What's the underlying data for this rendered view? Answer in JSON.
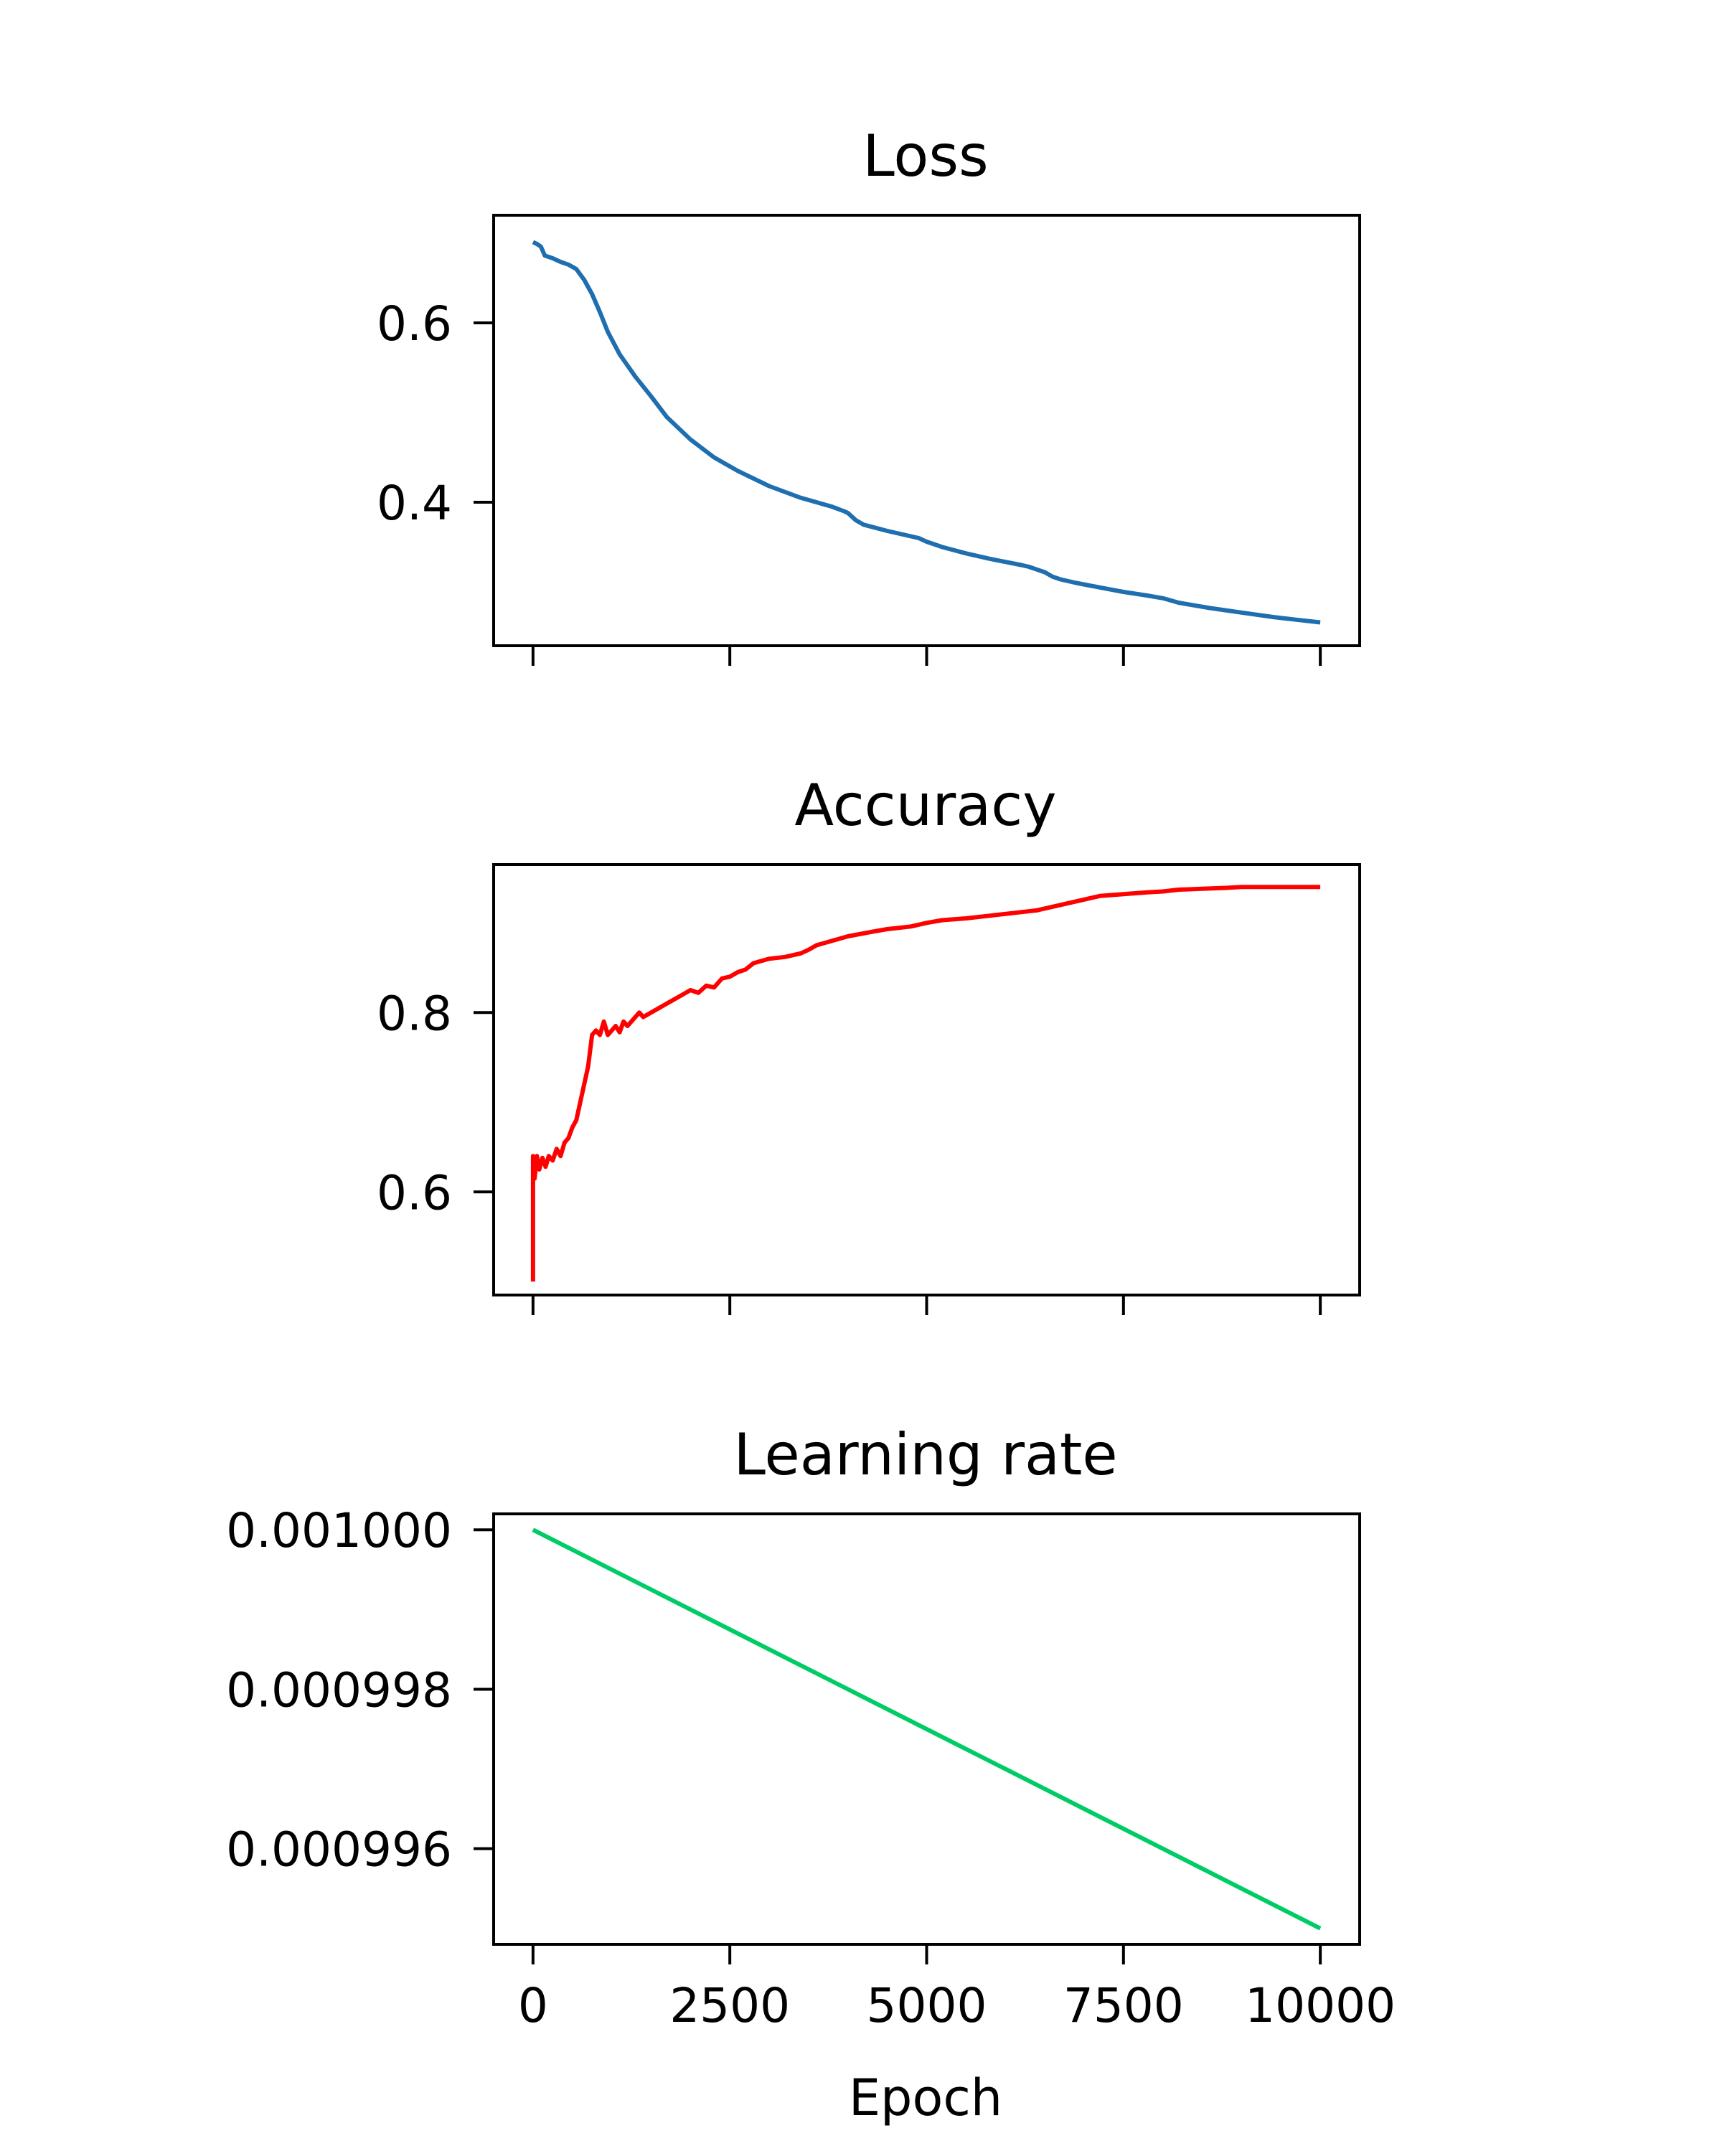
{
  "chart_data": [
    {
      "type": "line",
      "title": "Loss",
      "color": "#1f6fb0",
      "xlim": [
        -500,
        10500
      ],
      "ylim": [
        0.24,
        0.72
      ],
      "x_ticks": [
        0,
        2500,
        5000,
        7500,
        10000
      ],
      "y_ticks": [
        0.4,
        0.6
      ],
      "y_tick_labels": [
        "0.4",
        "0.6"
      ],
      "series": [
        {
          "x": [
            0,
            50,
            100,
            150,
            250,
            350,
            450,
            550,
            650,
            750,
            850,
            950,
            1100,
            1300,
            1500,
            1700,
            2000,
            2300,
            2600,
            3000,
            3400,
            3800,
            3950,
            4000,
            4100,
            4200,
            4500,
            4800,
            4900,
            5000,
            5200,
            5500,
            5800,
            6200,
            6300,
            6400,
            6500,
            6600,
            6700,
            6900,
            7200,
            7500,
            7800,
            8000,
            8200,
            8400,
            8600,
            9000,
            9400,
            9700,
            10000
          ],
          "y": [
            0.69,
            0.688,
            0.685,
            0.675,
            0.672,
            0.668,
            0.665,
            0.66,
            0.648,
            0.632,
            0.612,
            0.59,
            0.565,
            0.54,
            0.518,
            0.495,
            0.47,
            0.45,
            0.435,
            0.418,
            0.405,
            0.395,
            0.39,
            0.388,
            0.38,
            0.375,
            0.368,
            0.362,
            0.36,
            0.356,
            0.35,
            0.343,
            0.337,
            0.33,
            0.328,
            0.325,
            0.322,
            0.317,
            0.314,
            0.31,
            0.305,
            0.3,
            0.296,
            0.293,
            0.288,
            0.285,
            0.282,
            0.277,
            0.272,
            0.269,
            0.266
          ]
        }
      ]
    },
    {
      "type": "line",
      "title": "Accuracy",
      "color": "#ff0000",
      "xlim": [
        -500,
        10500
      ],
      "ylim": [
        0.485,
        0.965
      ],
      "x_ticks": [
        0,
        2500,
        5000,
        7500,
        10000
      ],
      "y_ticks": [
        0.6,
        0.8
      ],
      "y_tick_labels": [
        "0.6",
        "0.8"
      ],
      "series": [
        {
          "x": [
            0,
            0,
            20,
            50,
            80,
            120,
            160,
            200,
            250,
            300,
            350,
            400,
            450,
            500,
            550,
            600,
            650,
            700,
            750,
            800,
            850,
            900,
            950,
            1000,
            1050,
            1100,
            1150,
            1200,
            1300,
            1350,
            1400,
            1500,
            1600,
            1700,
            1800,
            1900,
            2000,
            2100,
            2200,
            2300,
            2400,
            2500,
            2600,
            2700,
            2800,
            3000,
            3200,
            3400,
            3500,
            3600,
            3800,
            4000,
            4300,
            4500,
            4800,
            5000,
            5200,
            5500,
            5800,
            6000,
            6200,
            6400,
            6600,
            6800,
            7000,
            7200,
            7500,
            7800,
            8000,
            8200,
            8500,
            8800,
            9000,
            9500,
            10000
          ],
          "y": [
            0.5,
            0.64,
            0.615,
            0.64,
            0.625,
            0.638,
            0.628,
            0.64,
            0.635,
            0.648,
            0.64,
            0.655,
            0.66,
            0.672,
            0.68,
            0.7,
            0.72,
            0.74,
            0.775,
            0.78,
            0.775,
            0.79,
            0.775,
            0.78,
            0.785,
            0.778,
            0.79,
            0.785,
            0.795,
            0.8,
            0.795,
            0.8,
            0.805,
            0.81,
            0.815,
            0.82,
            0.825,
            0.822,
            0.83,
            0.828,
            0.838,
            0.84,
            0.845,
            0.848,
            0.855,
            0.86,
            0.862,
            0.866,
            0.87,
            0.875,
            0.88,
            0.885,
            0.89,
            0.893,
            0.896,
            0.9,
            0.903,
            0.905,
            0.908,
            0.91,
            0.912,
            0.914,
            0.918,
            0.922,
            0.926,
            0.93,
            0.932,
            0.934,
            0.935,
            0.937,
            0.938,
            0.939,
            0.94,
            0.94,
            0.94
          ]
        }
      ]
    },
    {
      "type": "line",
      "title": "Learning rate",
      "xlabel": "Epoch",
      "color": "#00cc66",
      "xlim": [
        -500,
        10500
      ],
      "ylim": [
        0.0009948,
        0.0010002
      ],
      "x_ticks": [
        0,
        2500,
        5000,
        7500,
        10000
      ],
      "x_tick_labels": [
        "0",
        "2500",
        "5000",
        "7500",
        "10000"
      ],
      "y_ticks": [
        0.000996,
        0.000998,
        0.001
      ],
      "y_tick_labels": [
        "0.000996",
        "0.000998",
        "0.001000"
      ],
      "series": [
        {
          "x": [
            0,
            10000
          ],
          "y": [
            0.001,
            0.000995
          ]
        }
      ]
    }
  ]
}
